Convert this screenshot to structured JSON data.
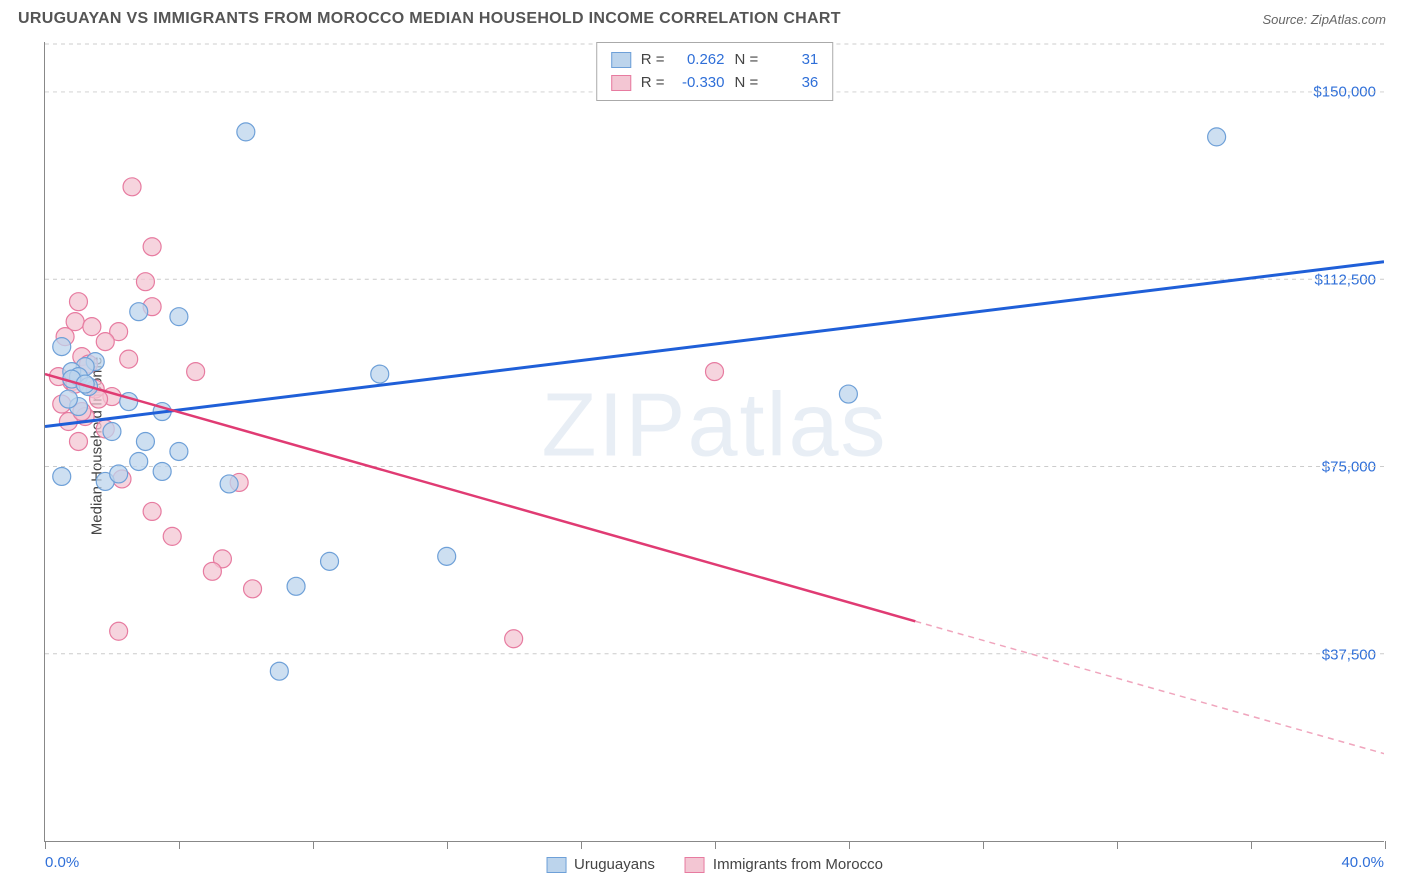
{
  "header": {
    "title": "URUGUAYAN VS IMMIGRANTS FROM MOROCCO MEDIAN HOUSEHOLD INCOME CORRELATION CHART",
    "source": "Source: ZipAtlas.com"
  },
  "chart": {
    "type": "scatter",
    "ylabel": "Median Household Income",
    "xlim": [
      0,
      40
    ],
    "ylim": [
      0,
      160000
    ],
    "xtick_start_label": "0.0%",
    "xtick_end_label": "40.0%",
    "xtick_positions": [
      0,
      4,
      8,
      12,
      16,
      20,
      24,
      28,
      32,
      36,
      40
    ],
    "ytick_values": [
      37500,
      75000,
      112500,
      150000
    ],
    "ytick_labels": [
      "$37,500",
      "$75,000",
      "$112,500",
      "$150,000"
    ],
    "background_color": "#ffffff",
    "grid_color": "#cccccc",
    "grid_dash": "4,4",
    "axis_color": "#888888",
    "watermark": "ZIPatlas",
    "series": {
      "uruguayans": {
        "label": "Uruguayans",
        "color_fill": "#bcd4ec",
        "color_stroke": "#6ea0d8",
        "marker_radius": 9,
        "points": [
          [
            6.0,
            142000
          ],
          [
            35.0,
            141000
          ],
          [
            2.8,
            106000
          ],
          [
            4.0,
            105000
          ],
          [
            0.5,
            99000
          ],
          [
            1.5,
            96000
          ],
          [
            1.2,
            95000
          ],
          [
            0.8,
            94000
          ],
          [
            1.0,
            93000
          ],
          [
            24.0,
            89500
          ],
          [
            10.0,
            93500
          ],
          [
            2.5,
            88000
          ],
          [
            3.5,
            86000
          ],
          [
            0.8,
            92500
          ],
          [
            1.3,
            91000
          ],
          [
            2.0,
            82000
          ],
          [
            3.0,
            80000
          ],
          [
            4.0,
            78000
          ],
          [
            2.8,
            76000
          ],
          [
            3.5,
            74000
          ],
          [
            0.5,
            73000
          ],
          [
            1.8,
            72000
          ],
          [
            2.2,
            73500
          ],
          [
            5.5,
            71500
          ],
          [
            8.5,
            56000
          ],
          [
            12.0,
            57000
          ],
          [
            7.5,
            51000
          ],
          [
            7.0,
            34000
          ],
          [
            1.2,
            91500
          ],
          [
            1.0,
            87000
          ],
          [
            0.7,
            88500
          ]
        ],
        "correlation": {
          "R": "0.262",
          "N": "31"
        },
        "trend": {
          "x1": 0,
          "y1": 83000,
          "x2": 40,
          "y2": 116000,
          "color": "#1f5fd8",
          "width": 3
        }
      },
      "morocco": {
        "label": "Immigrants from Morocco",
        "color_fill": "#f3c6d3",
        "color_stroke": "#e77ba0",
        "marker_radius": 9,
        "points": [
          [
            2.6,
            131000
          ],
          [
            3.2,
            119000
          ],
          [
            3.0,
            112000
          ],
          [
            1.0,
            108000
          ],
          [
            3.2,
            107000
          ],
          [
            0.9,
            104000
          ],
          [
            1.4,
            103000
          ],
          [
            2.2,
            102000
          ],
          [
            1.8,
            100000
          ],
          [
            1.1,
            97000
          ],
          [
            0.6,
            101000
          ],
          [
            1.3,
            95500
          ],
          [
            4.5,
            94000
          ],
          [
            2.5,
            96500
          ],
          [
            0.8,
            92000
          ],
          [
            1.5,
            90500
          ],
          [
            2.0,
            89000
          ],
          [
            0.5,
            87500
          ],
          [
            20.0,
            94000
          ],
          [
            1.2,
            85000
          ],
          [
            0.7,
            84000
          ],
          [
            1.8,
            82500
          ],
          [
            1.0,
            80000
          ],
          [
            2.3,
            72500
          ],
          [
            5.8,
            71800
          ],
          [
            3.2,
            66000
          ],
          [
            2.2,
            42000
          ],
          [
            5.3,
            56500
          ],
          [
            3.8,
            61000
          ],
          [
            5.0,
            54000
          ],
          [
            6.2,
            50500
          ],
          [
            14.0,
            40500
          ],
          [
            0.4,
            93000
          ],
          [
            0.9,
            91500
          ],
          [
            1.6,
            88500
          ],
          [
            1.1,
            86000
          ]
        ],
        "correlation": {
          "R": "-0.330",
          "N": "36"
        },
        "trend_solid": {
          "x1": 0,
          "y1": 93500,
          "x2": 26,
          "y2": 44000,
          "color": "#e03b73",
          "width": 2.5
        },
        "trend_dashed": {
          "x1": 26,
          "y1": 44000,
          "x2": 40,
          "y2": 17500,
          "color": "#f0a5bd",
          "width": 1.5,
          "dash": "6,5"
        }
      }
    },
    "legend_labels": {
      "R": "R =",
      "N": "N ="
    }
  }
}
